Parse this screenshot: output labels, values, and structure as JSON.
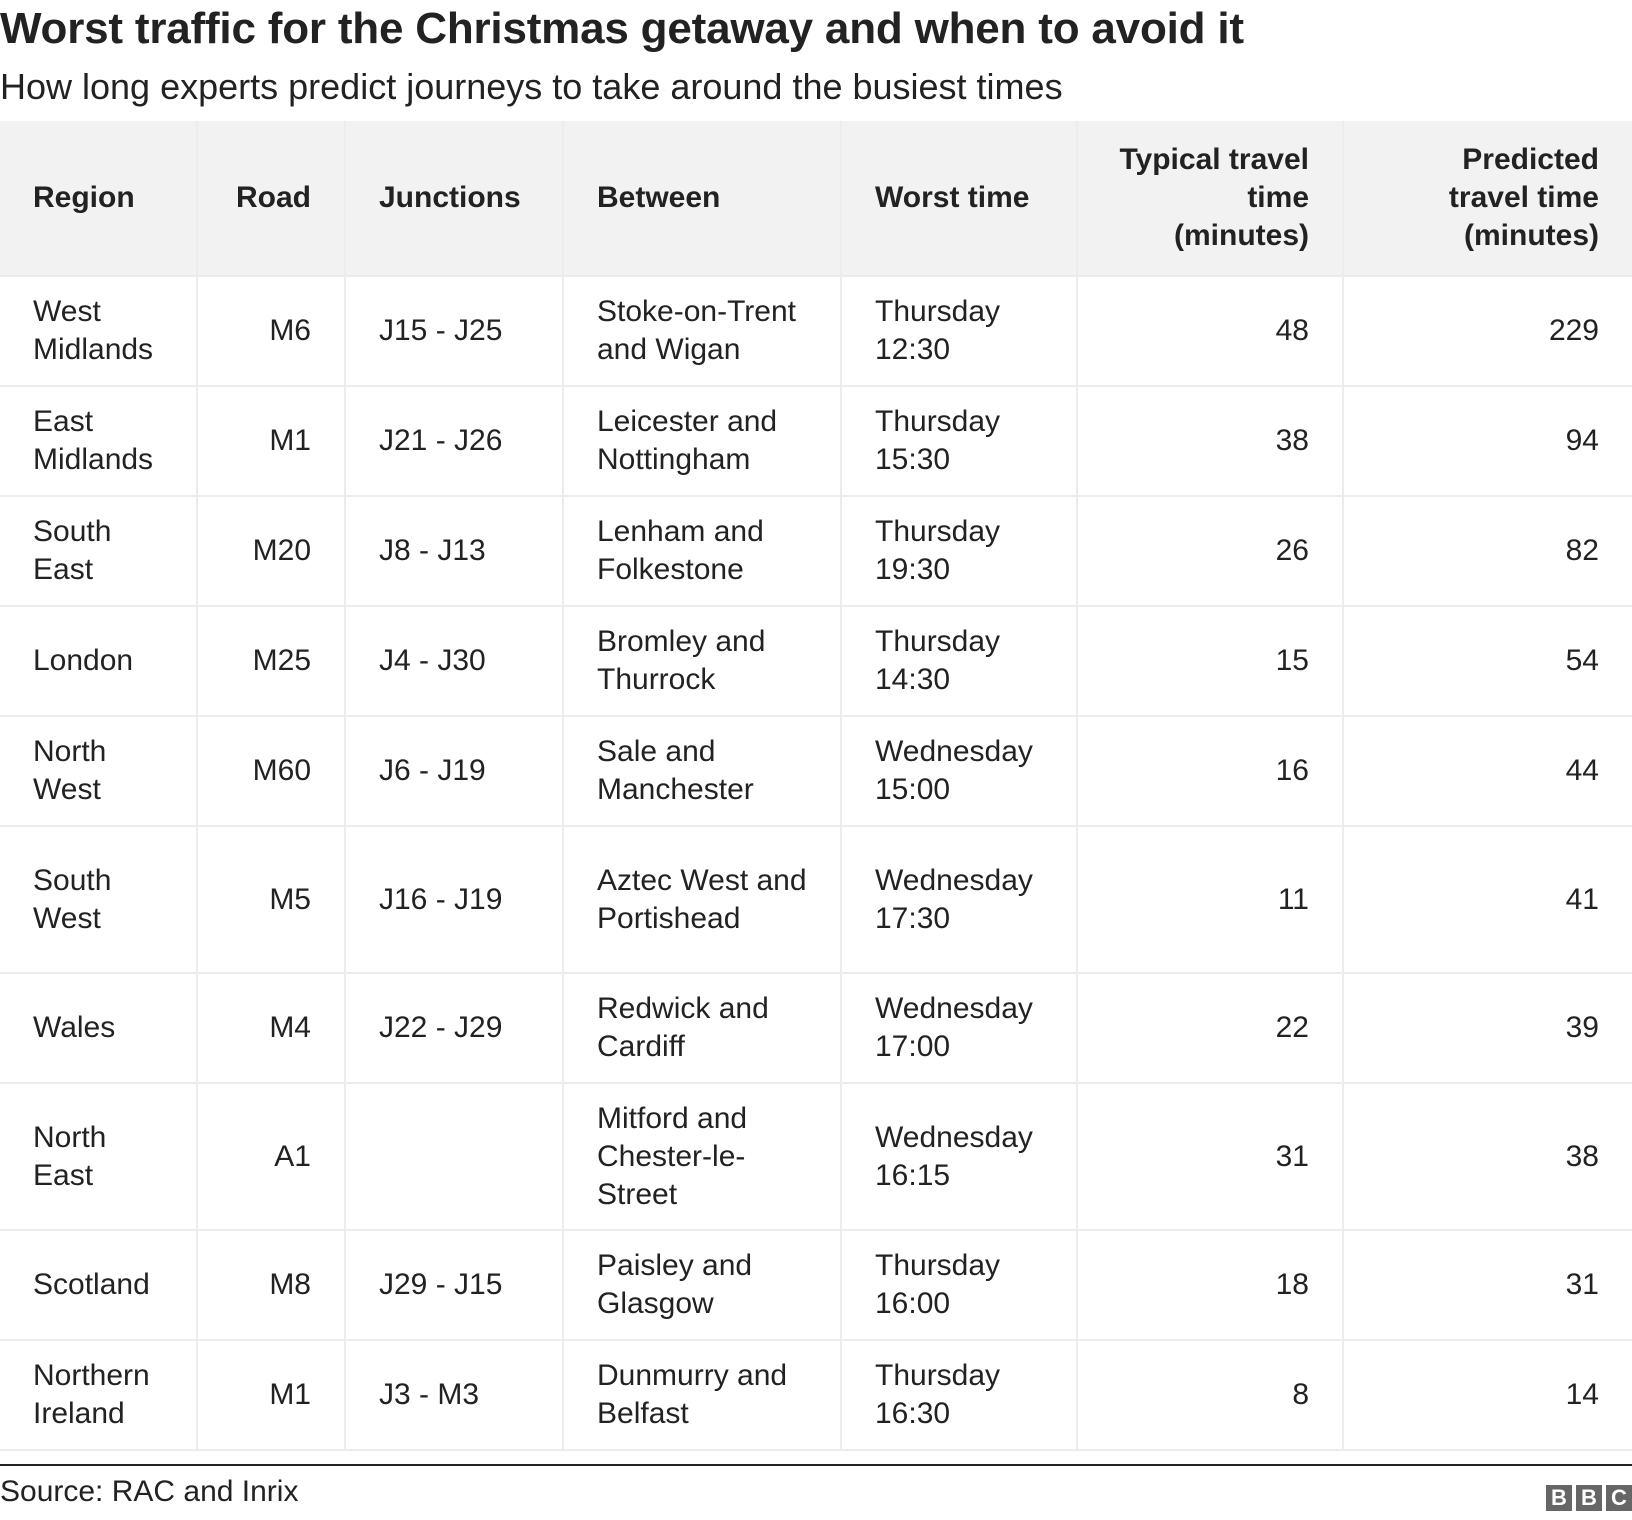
{
  "header": {
    "title": "Worst traffic for the Christmas getaway and when to avoid it",
    "subtitle": "How long experts predict journeys to take around the busiest times"
  },
  "chart_data": {
    "type": "table",
    "columns": [
      "Region",
      "Road",
      "Junctions",
      "Between",
      "Worst time",
      "Typical travel time (minutes)",
      "Predicted travel time (minutes)"
    ],
    "rows": [
      {
        "region": "West Midlands",
        "road": "M6",
        "junctions": "J15 - J25",
        "between": "Stoke-on-Trent and Wigan",
        "worst_time": "Thursday 12:30",
        "typical": 48,
        "predicted": 229
      },
      {
        "region": "East Midlands",
        "road": "M1",
        "junctions": "J21 - J26",
        "between": "Leicester and Nottingham",
        "worst_time": "Thursday 15:30",
        "typical": 38,
        "predicted": 94
      },
      {
        "region": "South East",
        "road": "M20",
        "junctions": "J8 - J13",
        "between": "Lenham and Folkestone",
        "worst_time": "Thursday 19:30",
        "typical": 26,
        "predicted": 82
      },
      {
        "region": "London",
        "road": "M25",
        "junctions": "J4 - J30",
        "between": "Bromley and Thurrock",
        "worst_time": "Thursday 14:30",
        "typical": 15,
        "predicted": 54
      },
      {
        "region": "North West",
        "road": "M60",
        "junctions": "J6 - J19",
        "between": "Sale and Manchester",
        "worst_time": "Wednesday 15:00",
        "typical": 16,
        "predicted": 44
      },
      {
        "region": "South West",
        "road": "M5",
        "junctions": "J16 - J19",
        "between": "Aztec West and Portishead",
        "worst_time": "Wednesday 17:30",
        "typical": 11,
        "predicted": 41
      },
      {
        "region": "Wales",
        "road": "M4",
        "junctions": "J22 - J29",
        "between": "Redwick and Cardiff",
        "worst_time": "Wednesday 17:00",
        "typical": 22,
        "predicted": 39
      },
      {
        "region": "North East",
        "road": "A1",
        "junctions": "",
        "between": "Mitford and Chester-le-Street",
        "worst_time": "Wednesday 16:15",
        "typical": 31,
        "predicted": 38
      },
      {
        "region": "Scotland",
        "road": "M8",
        "junctions": "J29 - J15",
        "between": "Paisley and Glasgow",
        "worst_time": "Thursday 16:00",
        "typical": 18,
        "predicted": 31
      },
      {
        "region": "Northern Ireland",
        "road": "M1",
        "junctions": "J3 - M3",
        "between": "Dunmurry and Belfast",
        "worst_time": "Thursday 16:30",
        "typical": 8,
        "predicted": 14
      }
    ]
  },
  "footer": {
    "source": "Source: RAC and Inrix",
    "logo_letters": [
      "B",
      "B",
      "C"
    ]
  }
}
